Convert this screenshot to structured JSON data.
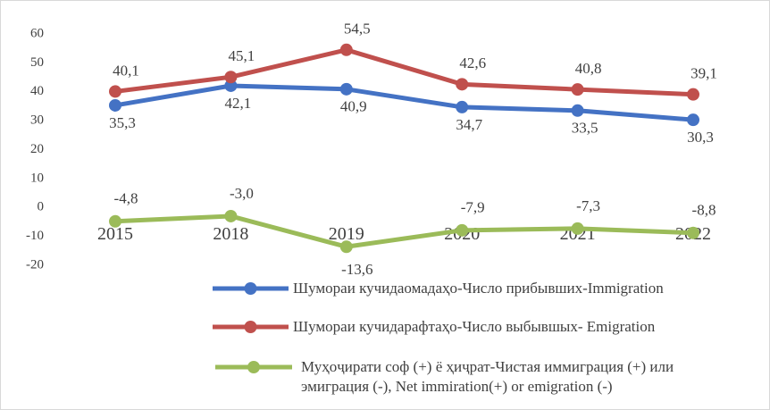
{
  "chart_data": {
    "type": "line",
    "categories": [
      "2015",
      "2018",
      "2019",
      "2020",
      "2021",
      "2022"
    ],
    "series": [
      {
        "name": "Шумораи кучидаомадаҳо-Число прибывших-Immigration",
        "color": "#4472c4",
        "values": [
          35.3,
          42.1,
          40.9,
          34.7,
          33.5,
          30.3
        ],
        "value_labels": [
          "35,3",
          "42,1",
          "40,9",
          "34,7",
          "33,5",
          "30,3"
        ]
      },
      {
        "name": "Шумораи кучидарафтаҳо-Число выбывшых- Emigration",
        "color": "#c0504d",
        "values": [
          40.1,
          45.1,
          54.5,
          42.6,
          40.8,
          39.1
        ],
        "value_labels": [
          "40,1",
          "45,1",
          "54,5",
          "42,6",
          "40,8",
          "39,1"
        ]
      },
      {
        "name": "Муҳоҷирати соф (+) ё ҳиҷрат-Чистая иммиграция (+) или эмиграция (-), Net  immiration(+) or emigration (-)",
        "color": "#9bbb59",
        "values": [
          -4.8,
          -3.0,
          -13.6,
          -7.9,
          -7.3,
          -8.8
        ],
        "value_labels": [
          "-4,8",
          "-3,0",
          "-13,6",
          "-7,9",
          "-7,3",
          "-8,8"
        ]
      }
    ],
    "ylim": [
      -20,
      60
    ],
    "yticks": [
      -20,
      -10,
      0,
      10,
      20,
      30,
      40,
      50,
      60
    ],
    "grid": false,
    "legend": "bottom"
  }
}
